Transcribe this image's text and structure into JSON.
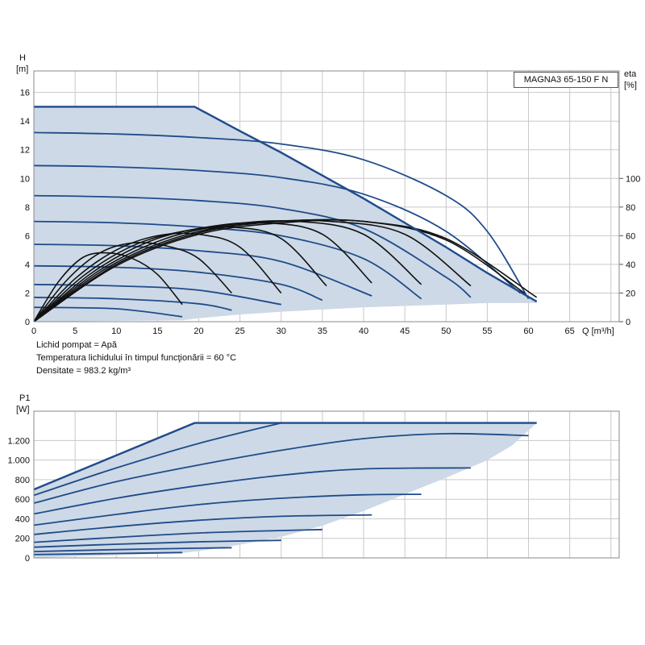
{
  "model": "MAGNA3 65-150 F N",
  "notes": {
    "liquid": "Lichid pompat = Apă",
    "temperature": "Temperatura lichidului în timpul funcţionării = 60 °C",
    "density": "Densitate = 983.2 kg/m³"
  },
  "chart_data": [
    {
      "type": "line",
      "xlabel": "Q [m³/h]",
      "ylabel_top": "H",
      "ylabel_unit": "[m]",
      "y2label_top": "eta",
      "y2label_unit": "[%]",
      "xlim": [
        0,
        71
      ],
      "ylim": [
        0,
        17.5
      ],
      "x_ticks": [
        0,
        5,
        10,
        15,
        20,
        25,
        30,
        35,
        40,
        45,
        50,
        55,
        60,
        65
      ],
      "x_tick_labels": [
        "0",
        "5",
        "10",
        "15",
        "20",
        "25",
        "30",
        "35",
        "40",
        "45",
        "50",
        "55",
        "60",
        "65"
      ],
      "y_ticks": [
        0,
        2,
        4,
        6,
        8,
        10,
        12,
        14,
        16
      ],
      "y_tick_labels": [
        "0",
        "2",
        "4",
        "6",
        "8",
        "10",
        "12",
        "14",
        "16"
      ],
      "y2_scale": 0.1,
      "y2_ticks": [
        0,
        20,
        40,
        60,
        80,
        100
      ],
      "y2_tick_labels": [
        "0",
        "20",
        "40",
        "60",
        "80",
        "100"
      ],
      "grid": true,
      "envelope": {
        "x": [
          0,
          19.5,
          30,
          40,
          50,
          55,
          61,
          61,
          60,
          55,
          50,
          45,
          40,
          35,
          30,
          25,
          20,
          18,
          0
        ],
        "y": [
          15,
          15,
          11.9,
          8.6,
          5.2,
          3.4,
          1.4,
          1.3,
          1.3,
          1.3,
          1.2,
          1.1,
          1.0,
          0.85,
          0.7,
          0.5,
          0.25,
          0.1,
          0
        ]
      },
      "max_curve": {
        "x": [
          0,
          19.5,
          25,
          30,
          35,
          40,
          45,
          50,
          55,
          61
        ],
        "y": [
          15,
          15,
          13.3,
          11.8,
          10.2,
          8.6,
          6.9,
          5.2,
          3.4,
          1.4
        ]
      },
      "series": [
        {
          "x": [
            0,
            10,
            20,
            30,
            40,
            50,
            55,
            60
          ],
          "y": [
            13.2,
            13.1,
            12.85,
            12.4,
            11.3,
            8.8,
            6.3,
            1.6
          ]
        },
        {
          "x": [
            0,
            10,
            20,
            30,
            40,
            50,
            59
          ],
          "y": [
            10.9,
            10.8,
            10.55,
            10.05,
            8.9,
            6.3,
            2.0
          ]
        },
        {
          "x": [
            0,
            10,
            20,
            30,
            40,
            50,
            53
          ],
          "y": [
            8.8,
            8.7,
            8.45,
            7.9,
            6.5,
            3.1,
            1.7
          ]
        },
        {
          "x": [
            0,
            10,
            20,
            30,
            40,
            47
          ],
          "y": [
            7.0,
            6.9,
            6.6,
            6.0,
            4.4,
            1.6
          ]
        },
        {
          "x": [
            0,
            10,
            20,
            30,
            41
          ],
          "y": [
            5.4,
            5.3,
            4.95,
            4.2,
            1.8
          ]
        },
        {
          "x": [
            0,
            10,
            20,
            30,
            35
          ],
          "y": [
            3.9,
            3.8,
            3.45,
            2.6,
            1.5
          ]
        },
        {
          "x": [
            0,
            10,
            20,
            30
          ],
          "y": [
            2.6,
            2.5,
            2.2,
            1.2
          ]
        },
        {
          "x": [
            0,
            10,
            20,
            24
          ],
          "y": [
            1.7,
            1.6,
            1.25,
            0.8
          ]
        },
        {
          "x": [
            0,
            10,
            18
          ],
          "y": [
            1.0,
            0.9,
            0.35
          ]
        }
      ],
      "eta_curves": [
        {
          "x": [
            0,
            3,
            6,
            9,
            12,
            15,
            18
          ],
          "eta": [
            0,
            28,
            45,
            48,
            44,
            33,
            12
          ]
        },
        {
          "x": [
            0,
            4,
            8,
            12,
            16,
            20,
            24
          ],
          "eta": [
            0,
            29,
            48,
            55,
            53,
            44,
            20
          ]
        },
        {
          "x": [
            0,
            5,
            10,
            15,
            20,
            25,
            30
          ],
          "eta": [
            0,
            30,
            50,
            60,
            61,
            52,
            20
          ]
        },
        {
          "x": [
            0,
            6,
            12,
            18,
            24,
            30,
            35.5
          ],
          "eta": [
            0,
            32,
            53,
            63,
            66,
            58,
            25
          ]
        },
        {
          "x": [
            0,
            7,
            14,
            21,
            28,
            35,
            41
          ],
          "eta": [
            0,
            34,
            56,
            66,
            69,
            61,
            27
          ]
        },
        {
          "x": [
            0,
            8,
            16,
            24,
            32,
            40,
            47
          ],
          "eta": [
            0,
            36,
            58,
            68,
            70,
            61,
            26
          ]
        },
        {
          "x": [
            0,
            9,
            18,
            27,
            36,
            45,
            53
          ],
          "eta": [
            0,
            38,
            60,
            69,
            70,
            61,
            25
          ]
        },
        {
          "x": [
            0,
            10,
            20,
            30,
            40,
            50,
            59.5
          ],
          "eta": [
            0,
            39,
            61,
            69,
            70,
            57,
            20
          ]
        },
        {
          "x": [
            0,
            10,
            20,
            30,
            40,
            50,
            61
          ],
          "eta": [
            0,
            40,
            62,
            70,
            70,
            58,
            17
          ]
        }
      ]
    },
    {
      "type": "line",
      "ylabel_top": "P1",
      "ylabel_unit": "[W]",
      "xlim": [
        0,
        71
      ],
      "ylim": [
        0,
        1500
      ],
      "y_ticks": [
        0,
        200,
        400,
        600,
        800,
        1000,
        1200
      ],
      "y_tick_labels": [
        "0",
        "200",
        "400",
        "600",
        "800",
        "1.000",
        "1.200"
      ],
      "grid": true,
      "envelope": {
        "x": [
          0,
          19.5,
          61,
          58,
          55,
          50,
          45,
          40,
          35,
          30,
          25,
          20,
          18,
          0
        ],
        "y": [
          700,
          1380,
          1380,
          1150,
          1000,
          820,
          650,
          480,
          330,
          215,
          135,
          70,
          50,
          0
        ]
      },
      "max_curve": {
        "x": [
          0,
          19.5,
          61
        ],
        "y": [
          700,
          1380,
          1380
        ]
      },
      "series": [
        {
          "x": [
            0,
            10,
            20,
            30
          ],
          "y": [
            640,
            920,
            1170,
            1380
          ]
        },
        {
          "x": [
            0,
            10,
            20,
            30,
            40,
            50,
            60
          ],
          "y": [
            560,
            780,
            950,
            1100,
            1220,
            1270,
            1250
          ]
        },
        {
          "x": [
            0,
            10,
            20,
            30,
            40,
            53
          ],
          "y": [
            450,
            610,
            740,
            845,
            910,
            920
          ]
        },
        {
          "x": [
            0,
            10,
            20,
            30,
            40,
            47
          ],
          "y": [
            335,
            445,
            545,
            610,
            645,
            650
          ]
        },
        {
          "x": [
            0,
            10,
            20,
            30,
            41
          ],
          "y": [
            240,
            320,
            385,
            425,
            440
          ]
        },
        {
          "x": [
            0,
            10,
            20,
            30,
            35
          ],
          "y": [
            160,
            210,
            255,
            280,
            290
          ]
        },
        {
          "x": [
            0,
            10,
            20,
            30
          ],
          "y": [
            110,
            140,
            165,
            180
          ]
        },
        {
          "x": [
            0,
            10,
            20,
            24
          ],
          "y": [
            65,
            85,
            100,
            105
          ]
        },
        {
          "x": [
            0,
            10,
            18
          ],
          "y": [
            35,
            45,
            55
          ]
        }
      ]
    }
  ]
}
